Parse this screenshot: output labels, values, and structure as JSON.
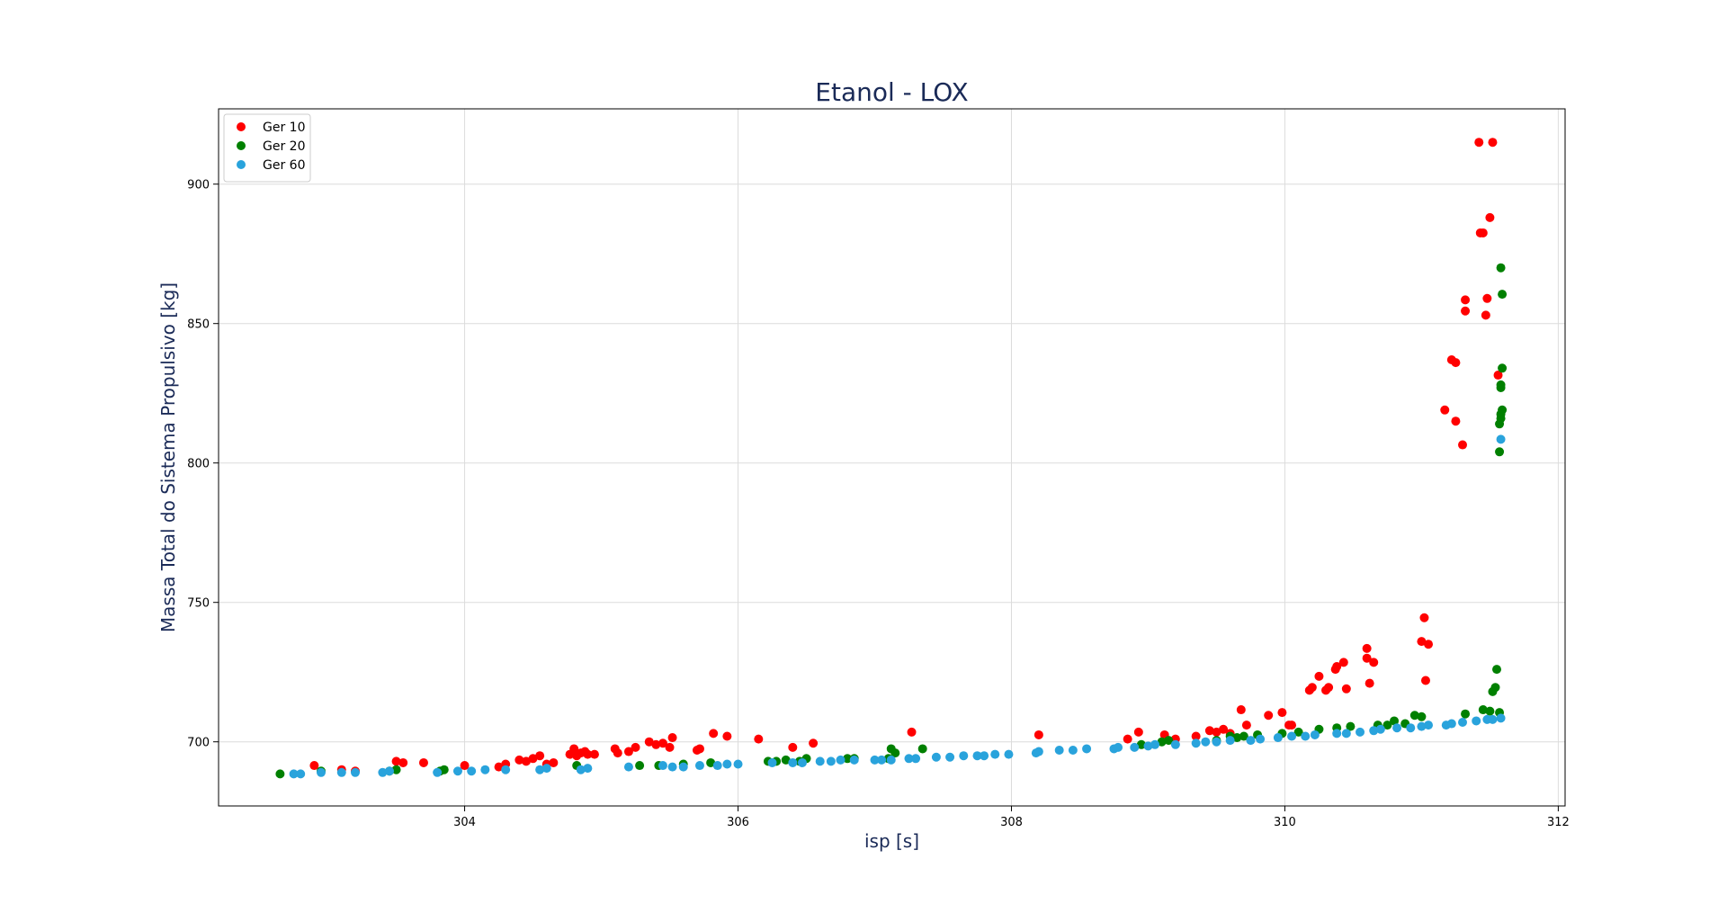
{
  "chart_data": {
    "type": "scatter",
    "title": "Etanol - LOX",
    "xlabel": "isp [s]",
    "ylabel": "Massa Total do Sistema Propulsivo [kg]",
    "xlim": [
      302.2,
      312.05
    ],
    "ylim": [
      677,
      927
    ],
    "xticks": [
      304,
      306,
      308,
      310,
      312
    ],
    "yticks": [
      700,
      750,
      800,
      850,
      900
    ],
    "grid": true,
    "legend": "top-left",
    "title_color": "#1a2a57",
    "series": [
      {
        "name": "Ger 10",
        "color": "#ff0000",
        "points": [
          [
            302.9,
            691.5
          ],
          [
            303.1,
            690
          ],
          [
            303.2,
            689.5
          ],
          [
            303.5,
            693
          ],
          [
            303.55,
            692.5
          ],
          [
            303.7,
            692.5
          ],
          [
            304.0,
            691.5
          ],
          [
            304.25,
            691
          ],
          [
            304.3,
            692
          ],
          [
            304.4,
            693.5
          ],
          [
            304.45,
            693
          ],
          [
            304.5,
            694
          ],
          [
            304.55,
            695
          ],
          [
            304.6,
            692
          ],
          [
            304.65,
            692.5
          ],
          [
            304.77,
            695.5
          ],
          [
            304.8,
            697.5
          ],
          [
            304.82,
            695
          ],
          [
            304.85,
            696
          ],
          [
            304.88,
            696.5
          ],
          [
            304.9,
            695.5
          ],
          [
            304.95,
            695.5
          ],
          [
            305.1,
            697.5
          ],
          [
            305.12,
            696
          ],
          [
            305.2,
            696.5
          ],
          [
            305.25,
            698
          ],
          [
            305.35,
            700
          ],
          [
            305.4,
            699
          ],
          [
            305.45,
            699.5
          ],
          [
            305.5,
            698
          ],
          [
            305.52,
            701.5
          ],
          [
            305.7,
            697
          ],
          [
            305.72,
            697.5
          ],
          [
            305.82,
            703
          ],
          [
            305.92,
            702
          ],
          [
            306.15,
            701
          ],
          [
            306.4,
            698
          ],
          [
            306.55,
            699.5
          ],
          [
            307.27,
            703.5
          ],
          [
            308.2,
            702.5
          ],
          [
            308.85,
            701
          ],
          [
            308.93,
            703.5
          ],
          [
            309.12,
            702.5
          ],
          [
            309.2,
            701
          ],
          [
            309.35,
            702
          ],
          [
            309.45,
            704
          ],
          [
            309.5,
            703.5
          ],
          [
            309.55,
            704.5
          ],
          [
            309.6,
            703
          ],
          [
            309.68,
            711.5
          ],
          [
            309.72,
            706
          ],
          [
            309.88,
            709.5
          ],
          [
            309.98,
            710.5
          ],
          [
            310.03,
            706
          ],
          [
            310.05,
            706
          ],
          [
            310.18,
            718.5
          ],
          [
            310.2,
            719.5
          ],
          [
            310.25,
            723.5
          ],
          [
            310.3,
            718.5
          ],
          [
            310.32,
            719.5
          ],
          [
            310.37,
            726
          ],
          [
            310.38,
            727
          ],
          [
            310.43,
            728.5
          ],
          [
            310.45,
            719
          ],
          [
            310.6,
            730
          ],
          [
            310.6,
            733.5
          ],
          [
            310.62,
            721
          ],
          [
            310.65,
            728.5
          ],
          [
            311.0,
            736
          ],
          [
            311.02,
            744.5
          ],
          [
            311.05,
            735
          ],
          [
            311.03,
            722
          ],
          [
            311.17,
            819
          ],
          [
            311.22,
            837
          ],
          [
            311.25,
            836
          ],
          [
            311.25,
            815
          ],
          [
            311.3,
            806.5
          ],
          [
            311.32,
            858.5
          ],
          [
            311.32,
            854.5
          ],
          [
            311.42,
            915
          ],
          [
            311.43,
            882.5
          ],
          [
            311.45,
            882.5
          ],
          [
            311.47,
            853
          ],
          [
            311.48,
            859
          ],
          [
            311.5,
            888
          ],
          [
            311.52,
            915
          ],
          [
            311.56,
            831.5
          ]
        ]
      },
      {
        "name": "Ger 20",
        "color": "#008000",
        "points": [
          [
            302.65,
            688.5
          ],
          [
            302.95,
            689.5
          ],
          [
            303.45,
            689.5
          ],
          [
            303.5,
            690
          ],
          [
            303.82,
            689.5
          ],
          [
            303.85,
            690
          ],
          [
            304.82,
            691.5
          ],
          [
            305.28,
            691.5
          ],
          [
            305.42,
            691.5
          ],
          [
            305.6,
            692
          ],
          [
            305.8,
            692.5
          ],
          [
            306.22,
            693
          ],
          [
            306.28,
            693
          ],
          [
            306.35,
            693.5
          ],
          [
            306.45,
            693
          ],
          [
            306.5,
            694
          ],
          [
            306.8,
            694
          ],
          [
            306.85,
            694
          ],
          [
            307.1,
            694
          ],
          [
            307.12,
            697.5
          ],
          [
            307.15,
            696
          ],
          [
            307.35,
            697.5
          ],
          [
            308.95,
            699
          ],
          [
            309.1,
            700
          ],
          [
            309.15,
            700.5
          ],
          [
            309.5,
            700.5
          ],
          [
            309.6,
            702
          ],
          [
            309.65,
            701.5
          ],
          [
            309.7,
            702
          ],
          [
            309.8,
            702.5
          ],
          [
            309.98,
            703
          ],
          [
            310.1,
            703.5
          ],
          [
            310.25,
            704.5
          ],
          [
            310.38,
            705
          ],
          [
            310.48,
            705.5
          ],
          [
            310.68,
            706
          ],
          [
            310.75,
            706
          ],
          [
            310.8,
            707.5
          ],
          [
            310.88,
            706.5
          ],
          [
            310.95,
            709.5
          ],
          [
            311.0,
            709
          ],
          [
            311.32,
            710
          ],
          [
            311.45,
            711.5
          ],
          [
            311.5,
            711
          ],
          [
            311.52,
            718
          ],
          [
            311.54,
            719.5
          ],
          [
            311.55,
            726
          ],
          [
            311.57,
            710.5
          ],
          [
            311.58,
            870
          ],
          [
            311.59,
            860.5
          ],
          [
            311.59,
            834
          ],
          [
            311.58,
            828
          ],
          [
            311.58,
            827
          ],
          [
            311.59,
            819
          ],
          [
            311.58,
            816
          ],
          [
            311.57,
            814
          ],
          [
            311.58,
            817.5
          ],
          [
            311.57,
            804
          ]
        ]
      },
      {
        "name": "Ger 60",
        "color": "#29a3dc",
        "points": [
          [
            302.75,
            688.5
          ],
          [
            302.8,
            688.5
          ],
          [
            302.95,
            689
          ],
          [
            303.1,
            689
          ],
          [
            303.2,
            689
          ],
          [
            303.4,
            689
          ],
          [
            303.45,
            689.5
          ],
          [
            303.8,
            689
          ],
          [
            303.95,
            689.5
          ],
          [
            304.05,
            689.5
          ],
          [
            304.15,
            690
          ],
          [
            304.3,
            690
          ],
          [
            304.55,
            690
          ],
          [
            304.6,
            690.5
          ],
          [
            304.85,
            690
          ],
          [
            304.9,
            690.5
          ],
          [
            305.2,
            691
          ],
          [
            305.45,
            691.5
          ],
          [
            305.52,
            691
          ],
          [
            305.6,
            691
          ],
          [
            305.72,
            691.5
          ],
          [
            305.85,
            691.5
          ],
          [
            305.92,
            692
          ],
          [
            306.0,
            692
          ],
          [
            306.25,
            692.5
          ],
          [
            306.4,
            692.5
          ],
          [
            306.47,
            692.5
          ],
          [
            306.6,
            693
          ],
          [
            306.68,
            693
          ],
          [
            306.75,
            693.5
          ],
          [
            306.85,
            693.5
          ],
          [
            307.0,
            693.5
          ],
          [
            307.05,
            693.5
          ],
          [
            307.12,
            693.5
          ],
          [
            307.25,
            694
          ],
          [
            307.3,
            694
          ],
          [
            307.45,
            694.5
          ],
          [
            307.55,
            694.5
          ],
          [
            307.65,
            695
          ],
          [
            307.75,
            695
          ],
          [
            307.8,
            695
          ],
          [
            307.88,
            695.5
          ],
          [
            307.98,
            695.5
          ],
          [
            308.18,
            696
          ],
          [
            308.2,
            696.5
          ],
          [
            308.35,
            697
          ],
          [
            308.45,
            697
          ],
          [
            308.55,
            697.5
          ],
          [
            308.75,
            697.5
          ],
          [
            308.78,
            698
          ],
          [
            308.9,
            698
          ],
          [
            309.0,
            698.5
          ],
          [
            309.05,
            699
          ],
          [
            309.2,
            699
          ],
          [
            309.35,
            699.5
          ],
          [
            309.42,
            700
          ],
          [
            309.5,
            700
          ],
          [
            309.6,
            700.5
          ],
          [
            309.75,
            700.5
          ],
          [
            309.82,
            701
          ],
          [
            309.95,
            701.5
          ],
          [
            310.05,
            702
          ],
          [
            310.15,
            702
          ],
          [
            310.22,
            702.5
          ],
          [
            310.38,
            703
          ],
          [
            310.45,
            703
          ],
          [
            310.55,
            703.5
          ],
          [
            310.65,
            704
          ],
          [
            310.7,
            704.5
          ],
          [
            310.82,
            705
          ],
          [
            310.92,
            705
          ],
          [
            311.0,
            705.5
          ],
          [
            311.05,
            706
          ],
          [
            311.18,
            706
          ],
          [
            311.22,
            706.5
          ],
          [
            311.3,
            707
          ],
          [
            311.4,
            707.5
          ],
          [
            311.48,
            708
          ],
          [
            311.52,
            708
          ],
          [
            311.58,
            708.5
          ],
          [
            311.58,
            808.5
          ]
        ]
      }
    ]
  }
}
